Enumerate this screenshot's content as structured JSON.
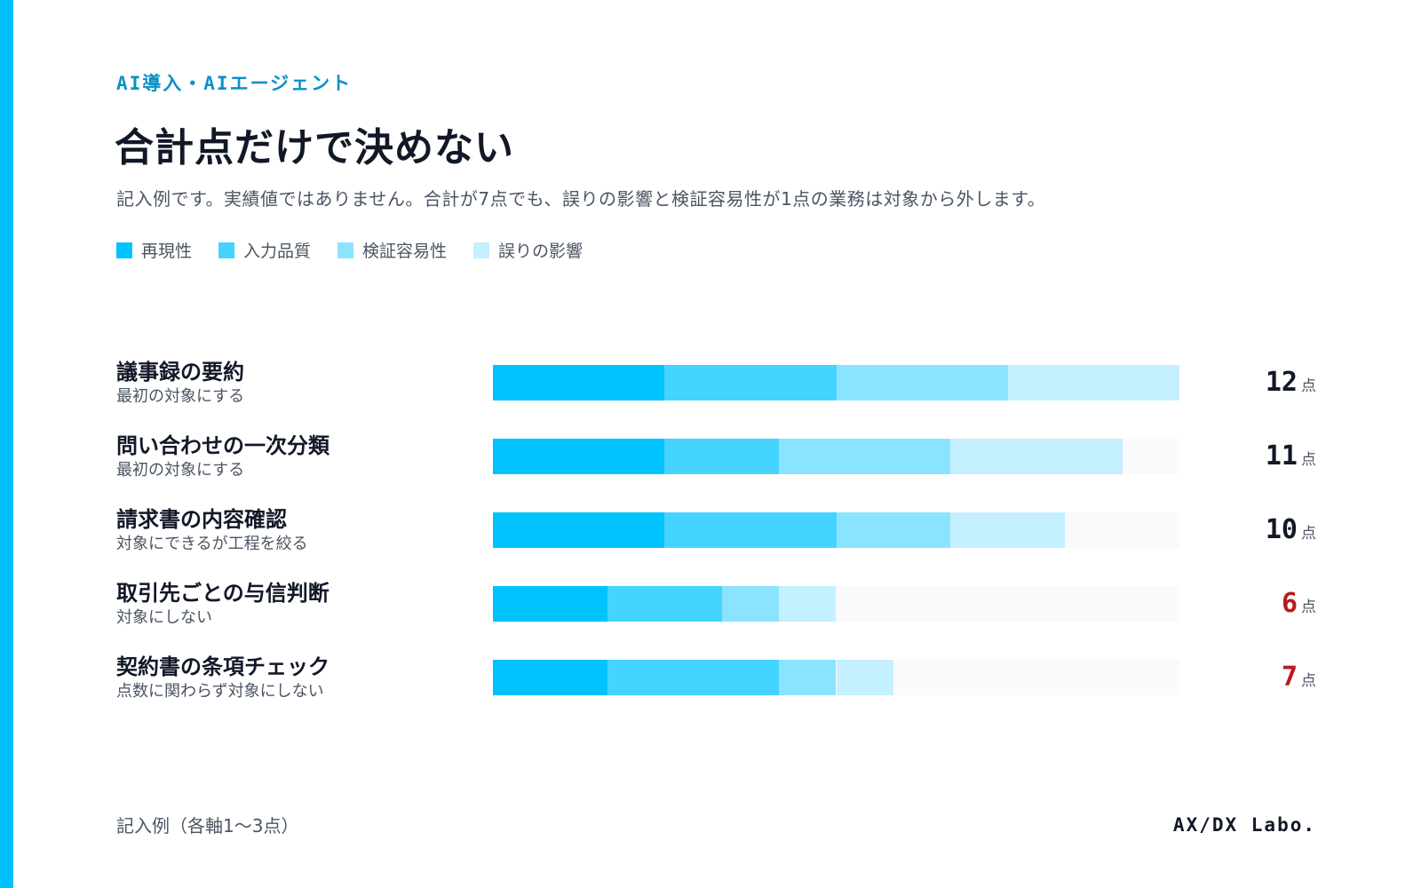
{
  "header": {
    "eyebrow": "AI導入・AIエージェント",
    "title": "合計点だけで決めない",
    "subtitle": "記入例です。実績値ではありません。合計が7点でも、誤りの影響と検証容易性が1点の業務は対象から外します。"
  },
  "colors": {
    "accent": "#00bfff",
    "eyebrow": "#0891c9",
    "track": "#f8fafc",
    "score_default": "#111827",
    "score_excluded": "#b91c1c"
  },
  "legend": [
    {
      "label": "再現性",
      "color": "#00c2ff"
    },
    {
      "label": "入力品質",
      "color": "#45d3ff"
    },
    {
      "label": "検証容易性",
      "color": "#8be4ff"
    },
    {
      "label": "誤りの影響",
      "color": "#c5f0ff"
    }
  ],
  "chart_data": {
    "type": "bar",
    "orientation": "horizontal",
    "stacked": true,
    "categories": [
      "議事録の要約",
      "問い合わせの一次分類",
      "請求書の内容確認",
      "取引先ごとの与信判断",
      "契約書の条項チェック"
    ],
    "notes": [
      "最初の対象にする",
      "最初の対象にする",
      "対象にできるが工程を絞る",
      "対象にしない",
      "点数に関わらず対象にしない"
    ],
    "series": [
      {
        "name": "再現性",
        "values": [
          3,
          3,
          3,
          2,
          2
        ]
      },
      {
        "name": "入力品質",
        "values": [
          3,
          2,
          3,
          2,
          3
        ]
      },
      {
        "name": "検証容易性",
        "values": [
          3,
          3,
          2,
          1,
          1
        ]
      },
      {
        "name": "誤りの影響",
        "values": [
          3,
          3,
          2,
          1,
          1
        ]
      }
    ],
    "totals": [
      12,
      11,
      10,
      6,
      7
    ],
    "total_unit": "点",
    "excluded": [
      false,
      false,
      false,
      true,
      true
    ],
    "xlim": [
      0,
      12
    ],
    "grid": false,
    "legend_position": "top-left"
  },
  "footer": {
    "note": "記入例（各軸1〜3点）",
    "brand": "AX/DX Labo."
  }
}
